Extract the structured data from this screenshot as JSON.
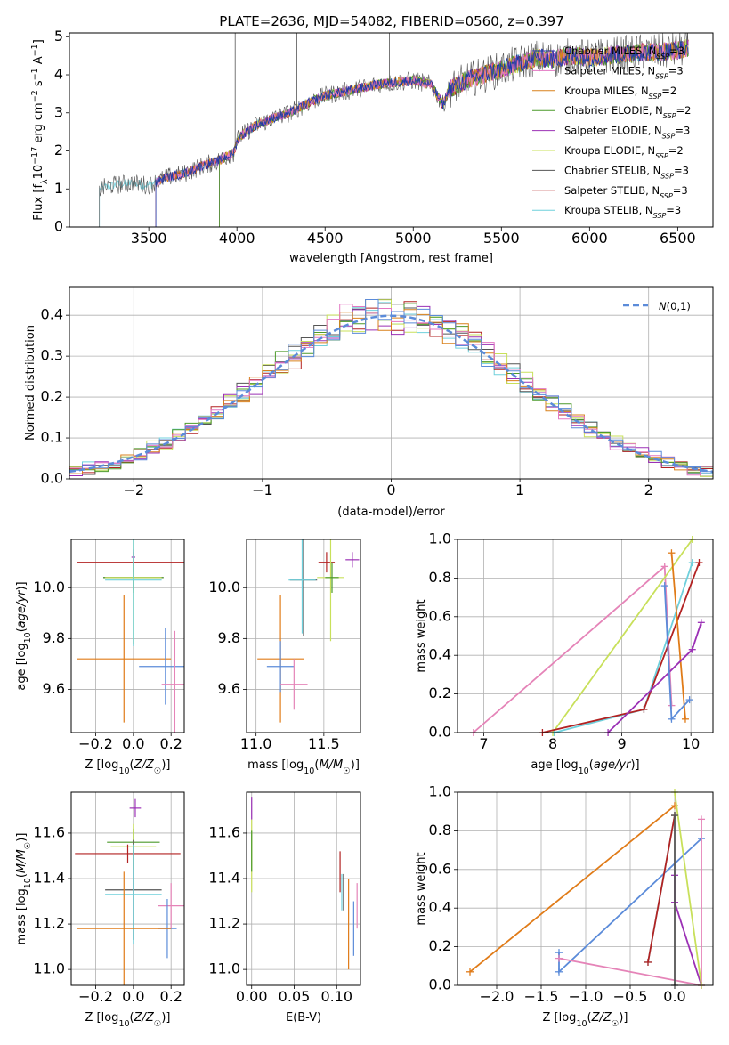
{
  "figure": {
    "title": "PLATE=2636, MJD=54082, FIBERID=0560, z=0.397",
    "colors": {
      "chabrier_miles": "#1f3aa8",
      "salpeter_miles": "#e377c2",
      "kroupa_miles": "#d9811c",
      "chabrier_elodie": "#4c9a2a",
      "salpeter_elodie": "#9b30b5",
      "kroupa_elodie": "#c8e05a",
      "chabrier_stelib": "#555555",
      "salpeter_stelib": "#b22222",
      "kroupa_stelib": "#6fd0dc",
      "blue": "#5b8bd9",
      "orange": "#e07b18",
      "pink": "#e584b8",
      "purple": "#9b30b5",
      "lime": "#c8e05a",
      "teal": "#6fd0dc",
      "red": "#b22222",
      "normal": "#5b8bd9"
    }
  },
  "chart_data": [
    {
      "id": "spectrum",
      "type": "line",
      "xlabel": "wavelength [Angstrom, rest frame]",
      "ylabel": "Flux [f_λ10^-17 erg cm^-2 s^-1 A^-1]",
      "xlim": [
        3050,
        6700
      ],
      "ylim": [
        0,
        5.1
      ],
      "xticks": [
        3500,
        4000,
        4500,
        5000,
        5500,
        6000,
        6500
      ],
      "yticks": [
        0,
        1,
        2,
        3,
        4,
        5
      ],
      "legend_position": "upper right",
      "series": [
        {
          "name": "Chabrier MILES, N_SSP=3",
          "color_key": "chabrier_miles",
          "start": 3540
        },
        {
          "name": "Salpeter MILES, N_SSP=3",
          "color_key": "salpeter_miles",
          "start": 3540
        },
        {
          "name": "Kroupa MILES, N_SSP=2",
          "color_key": "kroupa_miles",
          "start": 3540
        },
        {
          "name": "Chabrier ELODIE, N_SSP=2",
          "color_key": "chabrier_elodie",
          "start": 3900
        },
        {
          "name": "Salpeter ELODIE, N_SSP=3",
          "color_key": "salpeter_elodie",
          "start": 3900
        },
        {
          "name": "Kroupa ELODIE, N_SSP=2",
          "color_key": "kroupa_elodie",
          "start": 3900
        },
        {
          "name": "Chabrier STELIB, N_SSP=3",
          "color_key": "chabrier_stelib",
          "start": 3220
        },
        {
          "name": "Salpeter STELIB, N_SSP=3",
          "color_key": "salpeter_stelib",
          "start": 3540
        },
        {
          "name": "Kroupa STELIB, N_SSP=3",
          "color_key": "kroupa_stelib",
          "start": 3220
        }
      ],
      "continuum": {
        "x": [
          3220,
          3300,
          3400,
          3500,
          3600,
          3700,
          3800,
          3900,
          3980,
          4010,
          4100,
          4200,
          4300,
          4400,
          4500,
          4600,
          4700,
          4800,
          4900,
          5000,
          5100,
          5170,
          5200,
          5300,
          5400,
          5500,
          5600,
          5700,
          5800,
          5900,
          6000,
          6100,
          6200,
          6300,
          6400,
          6500,
          6550
        ],
        "y": [
          1.0,
          1.1,
          1.15,
          1.1,
          1.3,
          1.4,
          1.6,
          1.75,
          1.95,
          2.35,
          2.65,
          2.85,
          3.0,
          3.25,
          3.45,
          3.55,
          3.65,
          3.75,
          3.8,
          3.85,
          3.75,
          3.2,
          3.6,
          3.85,
          4.0,
          4.15,
          4.3,
          4.45,
          4.4,
          4.5,
          4.45,
          4.5,
          4.55,
          4.6,
          4.6,
          4.65,
          4.7
        ]
      }
    },
    {
      "id": "residuals",
      "type": "histogram",
      "xlabel": "(data-model)/error",
      "ylabel": "Normed distribution",
      "xlim": [
        -2.5,
        2.5
      ],
      "ylim": [
        0,
        0.47
      ],
      "xticks": [
        -2,
        -1,
        0,
        1,
        2
      ],
      "yticks": [
        0.0,
        0.1,
        0.2,
        0.3,
        0.4
      ],
      "grid": true,
      "legend": {
        "label": "N(0,1)",
        "position": "upper right"
      },
      "bin_width": 0.1,
      "bin_start": -2.5
    },
    {
      "id": "age_vs_Z",
      "type": "scatter",
      "xlabel": "Z [log10(Z/Z☉)]",
      "ylabel": "age  [log10(age/yr)]",
      "xlim": [
        -0.33,
        0.27
      ],
      "ylim": [
        9.43,
        10.19
      ],
      "xticks": [
        -0.2,
        0.0,
        0.2
      ],
      "yticks": [
        9.6,
        9.8,
        10.0
      ],
      "grid": true,
      "points": [
        {
          "color_key": "red",
          "x": 0.0,
          "y": 10.1,
          "xerr": 0.3,
          "yerr": 0.04
        },
        {
          "color_key": "purple",
          "x": 0.0,
          "y": 10.12,
          "xerr": 0.01,
          "yerr": 0.03
        },
        {
          "color_key": "chabrier_stelib",
          "x": 0.0,
          "y": 10.04,
          "xerr": 0.16,
          "yerr": 0.05
        },
        {
          "color_key": "chabrier_elodie",
          "x": 0.0,
          "y": 10.04,
          "xerr": 0.16,
          "yerr": 0.06
        },
        {
          "color_key": "lime",
          "x": 0.0,
          "y": 10.04,
          "xerr": 0.15,
          "yerr": 0.26
        },
        {
          "color_key": "teal",
          "x": 0.0,
          "y": 10.03,
          "xerr": 0.15,
          "yerr": 0.26
        },
        {
          "color_key": "orange",
          "x": -0.05,
          "y": 9.72,
          "xerr": 0.25,
          "yerr": 0.25
        },
        {
          "color_key": "blue",
          "x": 0.17,
          "y": 9.69,
          "xerr": 0.14,
          "yerr": 0.15
        },
        {
          "color_key": "pink",
          "x": 0.22,
          "y": 9.62,
          "xerr": 0.07,
          "yerr": 0.21
        }
      ]
    },
    {
      "id": "age_vs_mass",
      "type": "scatter",
      "xlabel": "mass [log10(M/M☉)]",
      "ylabel": "",
      "xlim": [
        10.93,
        11.77
      ],
      "ylim": [
        9.43,
        10.19
      ],
      "xticks": [
        11.0,
        11.5
      ],
      "yticks": [
        9.6,
        9.8,
        10.0
      ],
      "grid": true,
      "points": [
        {
          "color_key": "purple",
          "x": 11.71,
          "y": 10.11,
          "xerr": 0.05,
          "yerr": 0.03
        },
        {
          "color_key": "red",
          "x": 11.52,
          "y": 10.1,
          "xerr": 0.06,
          "yerr": 0.04
        },
        {
          "color_key": "lime",
          "x": 11.55,
          "y": 10.04,
          "xerr": 0.1,
          "yerr": 0.25
        },
        {
          "color_key": "chabrier_elodie",
          "x": 11.56,
          "y": 10.04,
          "xerr": 0.05,
          "yerr": 0.06
        },
        {
          "color_key": "chabrier_stelib",
          "x": 11.35,
          "y": 10.03,
          "xerr": 0.1,
          "yerr": 0.22
        },
        {
          "color_key": "teal",
          "x": 11.34,
          "y": 10.03,
          "xerr": 0.1,
          "yerr": 0.21
        },
        {
          "color_key": "orange",
          "x": 11.18,
          "y": 9.72,
          "xerr": 0.17,
          "yerr": 0.25
        },
        {
          "color_key": "blue",
          "x": 11.18,
          "y": 9.69,
          "xerr": 0.1,
          "yerr": 0.1
        },
        {
          "color_key": "pink",
          "x": 11.28,
          "y": 9.62,
          "xerr": 0.1,
          "yerr": 0.1
        }
      ]
    },
    {
      "id": "weight_vs_age",
      "type": "line",
      "xlabel": "age  [log10(age/yr)]",
      "ylabel": "mass weight",
      "xlim": [
        6.62,
        10.32
      ],
      "ylim": [
        0,
        1.0
      ],
      "xticks": [
        7,
        8,
        9,
        10
      ],
      "yticks": [
        0.0,
        0.2,
        0.4,
        0.6,
        0.8,
        1.0
      ],
      "grid": true,
      "series": [
        {
          "color_key": "pink",
          "x": [
            6.85,
            9.62,
            9.72
          ],
          "y": [
            0.0,
            0.86,
            0.14
          ]
        },
        {
          "color_key": "lime",
          "x": [
            8.0,
            10.02
          ],
          "y": [
            0.0,
            1.0
          ]
        },
        {
          "color_key": "teal",
          "x": [
            8.02,
            9.32,
            10.02
          ],
          "y": [
            0.0,
            0.12,
            0.88
          ]
        },
        {
          "color_key": "red",
          "x": [
            7.85,
            9.32,
            10.12
          ],
          "y": [
            0.0,
            0.12,
            0.88
          ]
        },
        {
          "color_key": "orange",
          "x": [
            9.72,
            9.92
          ],
          "y": [
            0.93,
            0.07
          ]
        },
        {
          "color_key": "purple",
          "x": [
            8.8,
            10.02,
            10.15
          ],
          "y": [
            0.0,
            0.43,
            0.57
          ]
        },
        {
          "color_key": "blue",
          "x": [
            9.62,
            9.72,
            9.98
          ],
          "y": [
            0.76,
            0.07,
            0.17
          ]
        }
      ]
    },
    {
      "id": "mass_vs_Z",
      "type": "scatter",
      "xlabel": "Z [log10(Z/Z☉)]",
      "ylabel": "mass [log10(M/M☉)]",
      "xlim": [
        -0.33,
        0.27
      ],
      "ylim": [
        10.93,
        11.78
      ],
      "xticks": [
        -0.2,
        0.0,
        0.2
      ],
      "yticks": [
        11.0,
        11.2,
        11.4,
        11.6
      ],
      "grid": true,
      "points": [
        {
          "color_key": "purple",
          "x": 0.01,
          "y": 11.71,
          "xerr": 0.03,
          "yerr": 0.04
        },
        {
          "color_key": "chabrier_elodie",
          "x": 0.0,
          "y": 11.56,
          "xerr": 0.14,
          "yerr": 0.06
        },
        {
          "color_key": "lime",
          "x": 0.0,
          "y": 11.54,
          "xerr": 0.12,
          "yerr": 0.1
        },
        {
          "color_key": "red",
          "x": -0.03,
          "y": 11.51,
          "xerr": 0.28,
          "yerr": 0.04
        },
        {
          "color_key": "chabrier_stelib",
          "x": 0.0,
          "y": 11.35,
          "xerr": 0.15,
          "yerr": 0.22
        },
        {
          "color_key": "teal",
          "x": 0.0,
          "y": 11.33,
          "xerr": 0.15,
          "yerr": 0.22
        },
        {
          "color_key": "pink",
          "x": 0.2,
          "y": 11.28,
          "xerr": 0.07,
          "yerr": 0.1
        },
        {
          "color_key": "blue",
          "x": 0.18,
          "y": 11.18,
          "xerr": 0.05,
          "yerr": 0.13
        },
        {
          "color_key": "orange",
          "x": -0.05,
          "y": 11.18,
          "xerr": 0.25,
          "yerr": 0.25
        }
      ]
    },
    {
      "id": "mass_vs_ebv",
      "type": "scatter",
      "xlabel": "E(B-V)",
      "ylabel": "",
      "xlim": [
        -0.006,
        0.128
      ],
      "ylim": [
        10.93,
        11.78
      ],
      "xticks": [
        0.0,
        0.05,
        0.1
      ],
      "tick_labels": [
        "0.00",
        "0.05",
        "0.10"
      ],
      "yticks": [
        11.0,
        11.2,
        11.4,
        11.6
      ],
      "grid": true,
      "points": [
        {
          "color_key": "purple",
          "x": 0.0,
          "y": 11.71,
          "xerr": 0,
          "yerr": 0.05
        },
        {
          "color_key": "lime",
          "x": 0.0,
          "y": 11.5,
          "xerr": 0,
          "yerr": 0.16
        },
        {
          "color_key": "chabrier_elodie",
          "x": 0.0,
          "y": 11.52,
          "xerr": 0,
          "yerr": 0.09
        },
        {
          "color_key": "red",
          "x": 0.104,
          "y": 11.43,
          "xerr": 0,
          "yerr": 0.09
        },
        {
          "color_key": "teal",
          "x": 0.106,
          "y": 11.34,
          "xerr": 0,
          "yerr": 0.08
        },
        {
          "color_key": "chabrier_stelib",
          "x": 0.108,
          "y": 11.34,
          "xerr": 0,
          "yerr": 0.08
        },
        {
          "color_key": "orange",
          "x": 0.114,
          "y": 11.2,
          "xerr": 0,
          "yerr": 0.2
        },
        {
          "color_key": "blue",
          "x": 0.12,
          "y": 11.18,
          "xerr": 0,
          "yerr": 0.12
        },
        {
          "color_key": "pink",
          "x": 0.124,
          "y": 11.28,
          "xerr": 0,
          "yerr": 0.1
        }
      ]
    },
    {
      "id": "weight_vs_Z",
      "type": "line",
      "xlabel": "Z [log10(Z/Z☉)]",
      "ylabel": "mass weight",
      "xlim": [
        -2.44,
        0.43
      ],
      "ylim": [
        0,
        1.0
      ],
      "xticks": [
        -2.0,
        -1.5,
        -1.0,
        -0.5,
        0.0
      ],
      "yticks": [
        0.0,
        0.2,
        0.4,
        0.6,
        0.8,
        1.0
      ],
      "grid": true,
      "series": [
        {
          "color_key": "orange",
          "x": [
            -2.3,
            0.0
          ],
          "y": [
            0.07,
            0.93
          ]
        },
        {
          "color_key": "blue",
          "x": [
            -1.3,
            -1.3,
            0.3
          ],
          "y": [
            0.17,
            0.07,
            0.76
          ]
        },
        {
          "color_key": "pink",
          "x": [
            -1.3,
            0.3,
            0.3
          ],
          "y": [
            0.14,
            0.0,
            0.86
          ]
        },
        {
          "color_key": "teal",
          "x": [
            -0.3,
            0.0
          ],
          "y": [
            0.12,
            0.88
          ]
        },
        {
          "color_key": "red",
          "x": [
            -0.3,
            0.0
          ],
          "y": [
            0.12,
            0.88
          ]
        },
        {
          "color_key": "purple",
          "x": [
            0.0,
            0.0,
            0.3
          ],
          "y": [
            0.57,
            0.43,
            0.0
          ]
        },
        {
          "color_key": "lime",
          "x": [
            0.0,
            0.3
          ],
          "y": [
            1.0,
            0.0
          ]
        },
        {
          "color_key": "chabrier_stelib",
          "x": [
            0.0,
            0.0
          ],
          "y": [
            0.0,
            0.88
          ]
        }
      ]
    }
  ]
}
